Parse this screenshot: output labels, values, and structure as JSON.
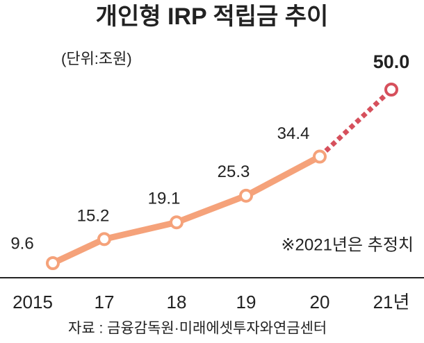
{
  "chart_data": {
    "type": "line",
    "title": "개인형 IRP 적립금 추이",
    "subtitle": "(단위:조원)",
    "categories": [
      "2015",
      "17",
      "18",
      "19",
      "20",
      "21년"
    ],
    "values": [
      9.6,
      15.2,
      19.1,
      25.3,
      34.4,
      50.0
    ],
    "value_labels": [
      "9.6",
      "15.2",
      "19.1",
      "25.3",
      "34.4",
      "50.0"
    ],
    "color": "#f5a27a",
    "projection_color": "#d6505c",
    "note": "※2021년은 추정치",
    "source": "자료 : 금융감독원·미래에셋투자와연금센터"
  }
}
